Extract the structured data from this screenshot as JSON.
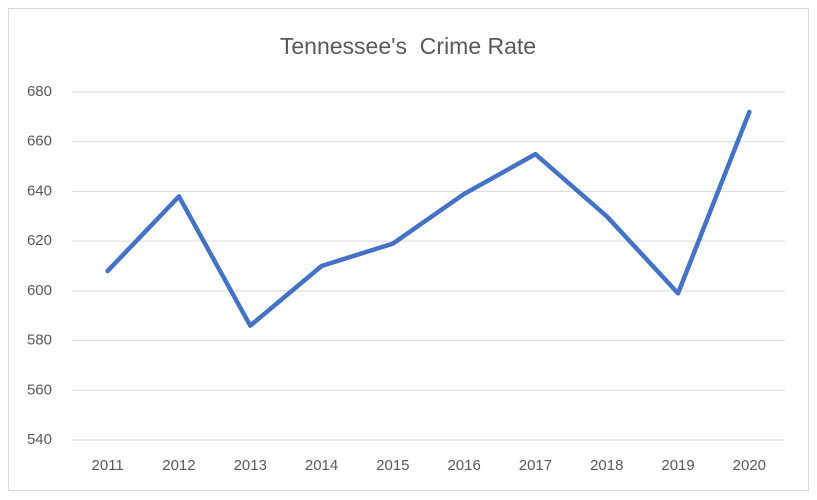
{
  "chart_data": {
    "type": "line",
    "title": "Tennessee's  Crime Rate",
    "categories": [
      "2011",
      "2012",
      "2013",
      "2014",
      "2015",
      "2016",
      "2017",
      "2018",
      "2019",
      "2020"
    ],
    "series": [
      {
        "name": "Crime Rate",
        "color": "#4472c4",
        "values": [
          608,
          638,
          586,
          610,
          619,
          639,
          655,
          630,
          599,
          672
        ]
      }
    ],
    "ylim": [
      540,
      680
    ],
    "yticks": [
      540,
      560,
      580,
      600,
      620,
      640,
      660,
      680
    ],
    "grid": true
  }
}
